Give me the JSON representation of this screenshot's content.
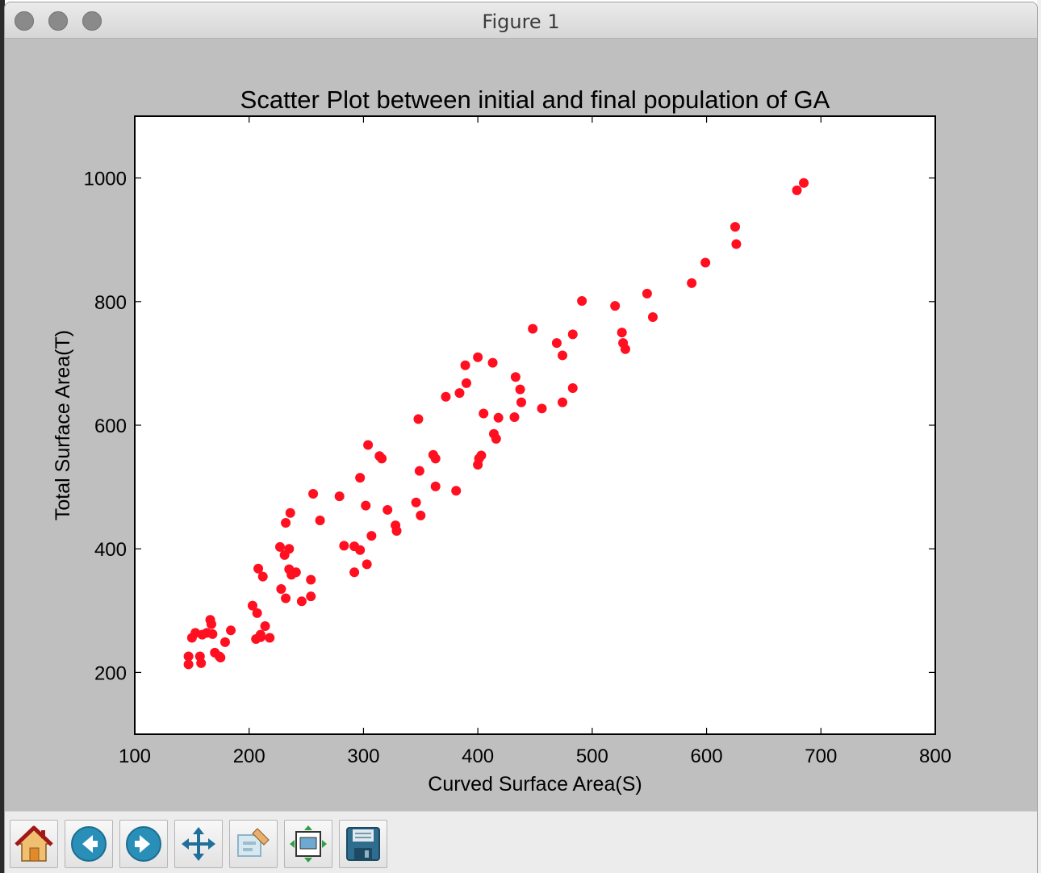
{
  "window": {
    "title": "Figure 1"
  },
  "toolbar": {
    "buttons": [
      {
        "name": "home",
        "icon": "home-icon"
      },
      {
        "name": "back",
        "icon": "arrow-left-icon"
      },
      {
        "name": "forward",
        "icon": "arrow-right-icon"
      },
      {
        "name": "pan",
        "icon": "move-icon"
      },
      {
        "name": "zoom",
        "icon": "zoom-rect-icon"
      },
      {
        "name": "subplots",
        "icon": "configure-subplots-icon"
      },
      {
        "name": "save",
        "icon": "floppy-disk-icon"
      }
    ]
  },
  "colors": {
    "marker": "#ff0f1f",
    "figure_bg": "#bfbfbf",
    "axes_bg": "#ffffff"
  },
  "chart_data": {
    "type": "scatter",
    "title": "Scatter Plot between initial and final population of GA",
    "xlabel": "Curved Surface Area(S)",
    "ylabel": "Total Surface Area(T)",
    "xlim": [
      100,
      800
    ],
    "ylim": [
      100,
      1100
    ],
    "xticks": [
      "100",
      "200",
      "300",
      "400",
      "500",
      "600",
      "700",
      "800"
    ],
    "yticks": [
      "200",
      "400",
      "600",
      "800",
      "1000"
    ],
    "grid": false,
    "series": [
      {
        "points": [
          [
            147,
            213
          ],
          [
            147,
            226
          ],
          [
            150,
            256
          ],
          [
            153,
            264
          ],
          [
            157,
            226
          ],
          [
            158,
            215
          ],
          [
            159,
            261
          ],
          [
            163,
            264
          ],
          [
            166,
            285
          ],
          [
            167,
            278
          ],
          [
            168,
            262
          ],
          [
            170,
            232
          ],
          [
            174,
            226
          ],
          [
            175,
            224
          ],
          [
            179,
            249
          ],
          [
            184,
            268
          ],
          [
            203,
            308
          ],
          [
            206,
            254
          ],
          [
            207,
            296
          ],
          [
            208,
            368
          ],
          [
            210,
            257
          ],
          [
            210,
            261
          ],
          [
            212,
            355
          ],
          [
            214,
            275
          ],
          [
            218,
            256
          ],
          [
            227,
            403
          ],
          [
            228,
            335
          ],
          [
            231,
            390
          ],
          [
            232,
            442
          ],
          [
            232,
            320
          ],
          [
            235,
            400
          ],
          [
            235,
            367
          ],
          [
            236,
            458
          ],
          [
            237,
            358
          ],
          [
            241,
            362
          ],
          [
            246,
            315
          ],
          [
            254,
            350
          ],
          [
            254,
            323
          ],
          [
            256,
            489
          ],
          [
            262,
            446
          ],
          [
            279,
            485
          ],
          [
            283,
            405
          ],
          [
            292,
            404
          ],
          [
            292,
            362
          ],
          [
            297,
            398
          ],
          [
            297,
            515
          ],
          [
            302,
            470
          ],
          [
            303,
            375
          ],
          [
            304,
            568
          ],
          [
            307,
            421
          ],
          [
            314,
            550
          ],
          [
            316,
            546
          ],
          [
            321,
            463
          ],
          [
            328,
            438
          ],
          [
            329,
            429
          ],
          [
            346,
            475
          ],
          [
            348,
            610
          ],
          [
            349,
            526
          ],
          [
            350,
            454
          ],
          [
            361,
            552
          ],
          [
            363,
            546
          ],
          [
            363,
            501
          ],
          [
            372,
            646
          ],
          [
            381,
            494
          ],
          [
            384,
            652
          ],
          [
            389,
            697
          ],
          [
            390,
            668
          ],
          [
            400,
            710
          ],
          [
            400,
            536
          ],
          [
            401,
            546
          ],
          [
            403,
            551
          ],
          [
            405,
            619
          ],
          [
            413,
            701
          ],
          [
            414,
            586
          ],
          [
            416,
            578
          ],
          [
            418,
            612
          ],
          [
            432,
            613
          ],
          [
            433,
            678
          ],
          [
            437,
            658
          ],
          [
            438,
            637
          ],
          [
            448,
            756
          ],
          [
            456,
            627
          ],
          [
            469,
            733
          ],
          [
            474,
            713
          ],
          [
            474,
            637
          ],
          [
            483,
            747
          ],
          [
            483,
            660
          ],
          [
            491,
            801
          ],
          [
            520,
            793
          ],
          [
            526,
            750
          ],
          [
            527,
            733
          ],
          [
            529,
            723
          ],
          [
            548,
            813
          ],
          [
            553,
            775
          ],
          [
            587,
            830
          ],
          [
            599,
            863
          ],
          [
            625,
            921
          ],
          [
            626,
            893
          ],
          [
            679,
            980
          ],
          [
            685,
            992
          ]
        ]
      }
    ]
  }
}
